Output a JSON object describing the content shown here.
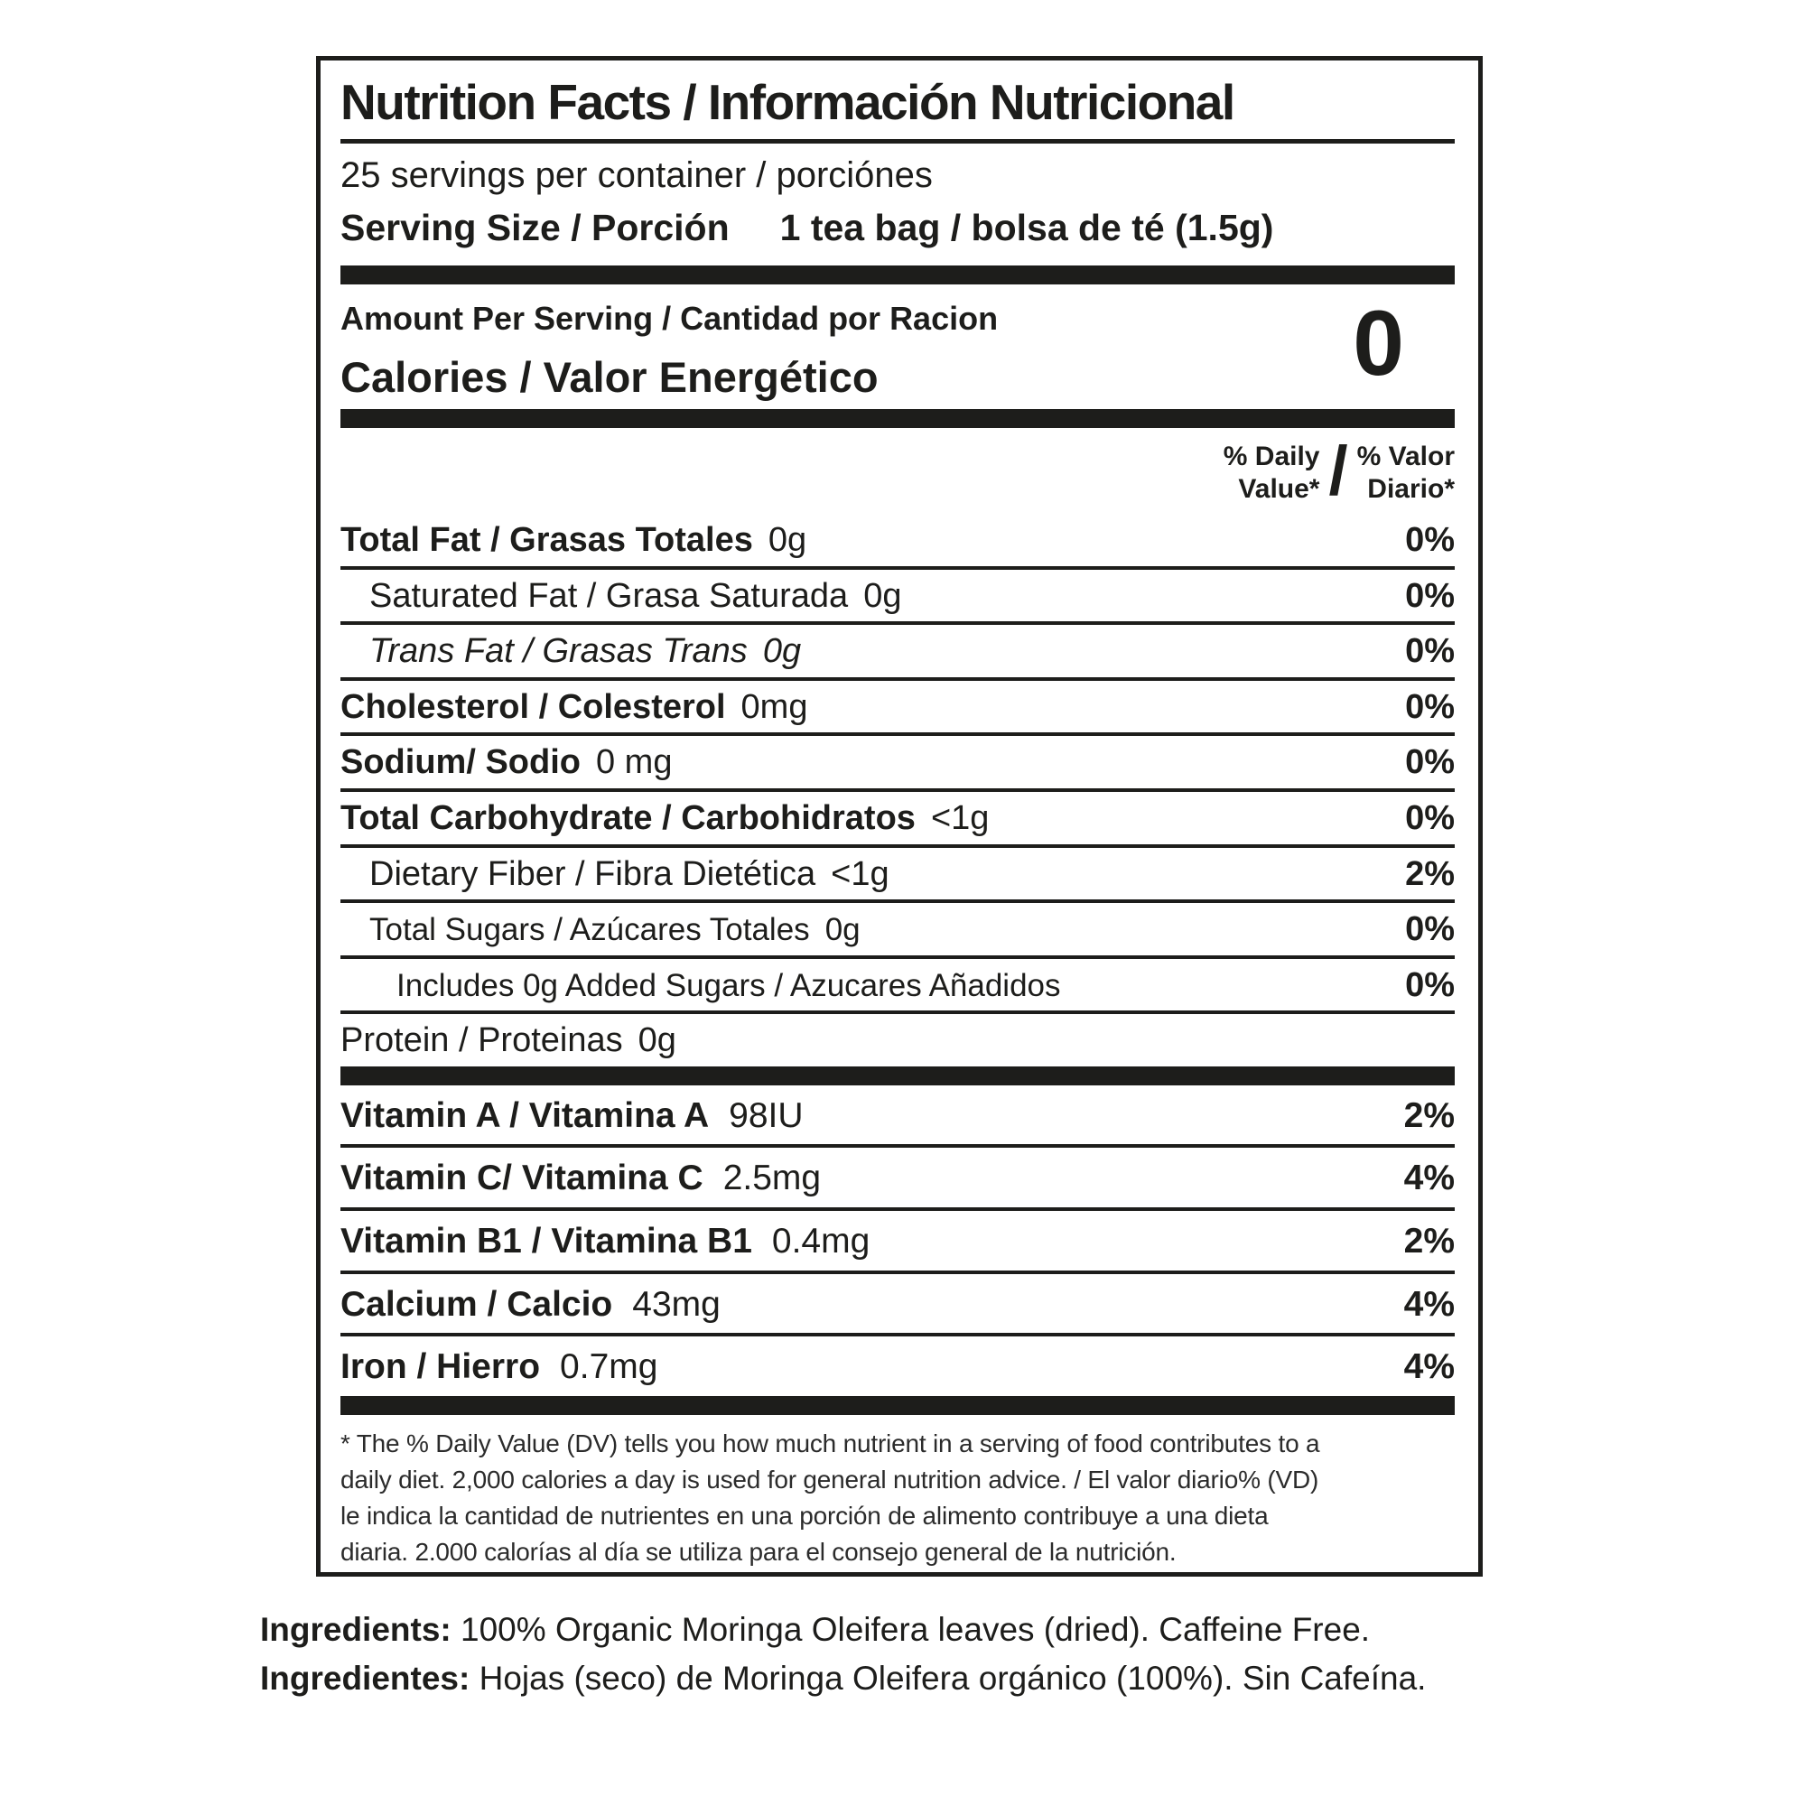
{
  "colors": {
    "ink": "#1d1d1b",
    "background": "#ffffff"
  },
  "label": {
    "title": "Nutrition Facts / Información Nutricional",
    "servings_per_container": "25 servings per container / porciónes",
    "serving_size_label": "Serving Size / Porción",
    "serving_size_value": "1 tea bag / bolsa de té (1.5g)",
    "amount_per_serving": "Amount Per Serving / Cantidad por Racion",
    "calories_label": "Calories / Valor Energético",
    "calories_value": "0",
    "dv_header": {
      "en_line1": "% Daily",
      "en_line2": "Value*",
      "slash": "/",
      "es_line1": "% Valor",
      "es_line2": "Diario*"
    },
    "nutrients": [
      {
        "label": "Total Fat / Grasas Totales",
        "value": "0g",
        "percent": "0%",
        "bold": true,
        "indent": 0,
        "italic": false,
        "small": false,
        "last": false
      },
      {
        "label": "Saturated Fat / Grasa Saturada",
        "value": "0g",
        "percent": "0%",
        "bold": false,
        "indent": 1,
        "italic": false,
        "small": false,
        "last": false
      },
      {
        "label": "Trans Fat / Grasas Trans",
        "value": "0g",
        "percent": "0%",
        "bold": false,
        "indent": 1,
        "italic": true,
        "small": false,
        "last": false
      },
      {
        "label": "Cholesterol / Colesterol",
        "value": "0mg",
        "percent": "0%",
        "bold": true,
        "indent": 0,
        "italic": false,
        "small": false,
        "last": false
      },
      {
        "label": "Sodium/ Sodio",
        "value": "0 mg",
        "percent": "0%",
        "bold": true,
        "indent": 0,
        "italic": false,
        "small": false,
        "last": false
      },
      {
        "label": "Total Carbohydrate / Carbohidratos",
        "value": "<1g",
        "percent": "0%",
        "bold": true,
        "indent": 0,
        "italic": false,
        "small": false,
        "last": false
      },
      {
        "label": "Dietary Fiber / Fibra Dietética",
        "value": "<1g",
        "percent": "2%",
        "bold": false,
        "indent": 1,
        "italic": false,
        "small": false,
        "last": false
      },
      {
        "label": "Total Sugars / Azúcares Totales",
        "value": "0g",
        "percent": "0%",
        "bold": false,
        "indent": 1,
        "italic": false,
        "small": true,
        "last": false
      },
      {
        "label": "Includes 0g Added Sugars / Azucares Añadidos",
        "value": "",
        "percent": "0%",
        "bold": false,
        "indent": 2,
        "italic": false,
        "small": true,
        "last": false
      },
      {
        "label": "Protein / Proteinas",
        "value": "0g",
        "percent": "",
        "bold": false,
        "indent": 0,
        "italic": false,
        "small": false,
        "last": true
      }
    ],
    "vitamins": [
      {
        "label": "Vitamin A / Vitamina A",
        "value": "98IU",
        "percent": "2%",
        "last": false
      },
      {
        "label": "Vitamin C/ Vitamina C",
        "value": "2.5mg",
        "percent": "4%",
        "last": false
      },
      {
        "label": "Vitamin B1 / Vitamina B1",
        "value": "0.4mg",
        "percent": "2%",
        "last": false
      },
      {
        "label": "Calcium / Calcio",
        "value": "43mg",
        "percent": "4%",
        "last": false
      },
      {
        "label": "Iron / Hierro",
        "value": "0.7mg",
        "percent": "4%",
        "last": true
      }
    ],
    "footnote_lines": [
      "* The % Daily Value (DV) tells you how much nutrient in a serving of food contributes to a",
      "daily diet. 2,000 calories a day is used for general nutrition advice. / El valor diario% (VD)",
      "le indica la cantidad de nutrientes en una porción de alimento contribuye a una dieta",
      "diaria. 2.000 calorías al día se utiliza para el consejo general de la nutrición."
    ]
  },
  "ingredients": {
    "en_label": "Ingredients:",
    "en_text": "100% Organic  Moringa Oleifera leaves (dried).  Caffeine Free.",
    "es_label": "Ingredientes:",
    "es_text": "Hojas (seco) de Moringa Oleifera orgánico (100%).  Sin Cafeína."
  }
}
